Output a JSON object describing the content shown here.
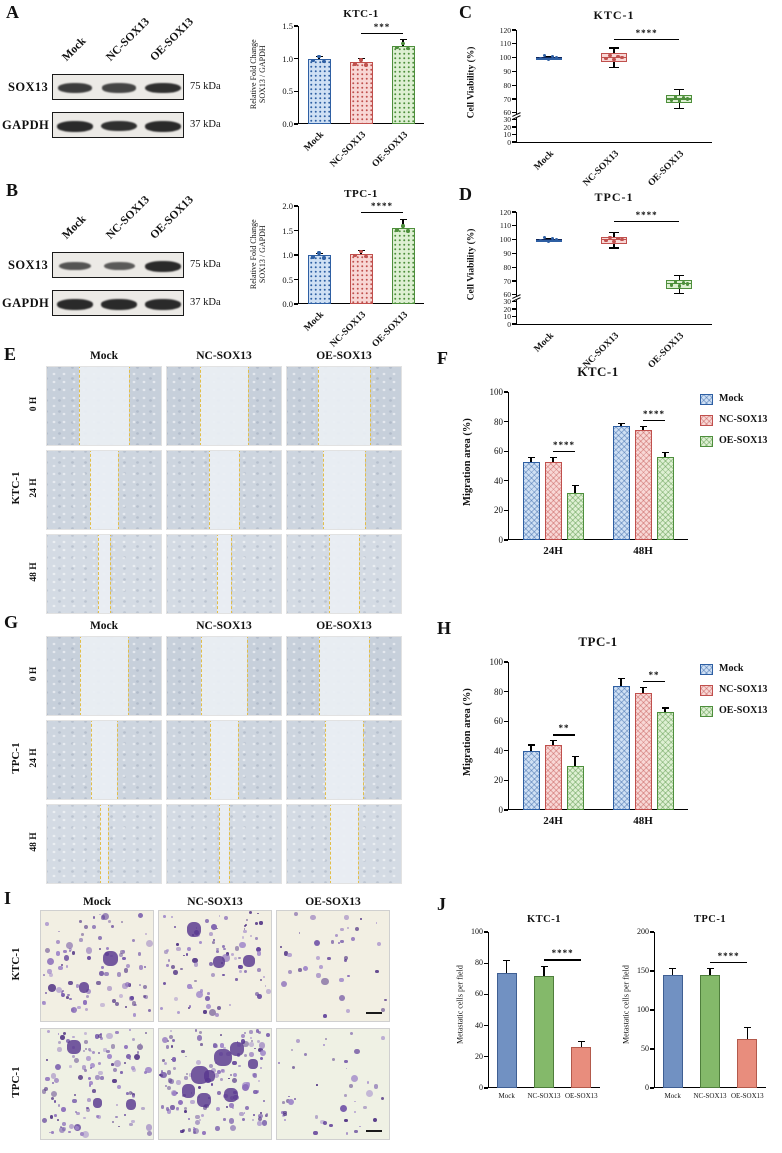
{
  "panel_labels": {
    "a": "A",
    "b": "B",
    "c": "C",
    "d": "D",
    "e": "E",
    "f": "F",
    "g": "G",
    "h": "H",
    "i": "I",
    "j": "J"
  },
  "colors": {
    "series_fill": [
      "#cfe0f4",
      "#f8d7d5",
      "#def0d3"
    ],
    "series_line": [
      "#2e5fa3",
      "#c0504d",
      "#4e8f3c"
    ],
    "j_fill": [
      "#7191c2",
      "#84b96a",
      "#e88d7d"
    ],
    "j_line": [
      "#3f5f93",
      "#4f7e3c",
      "#b35a4c"
    ],
    "dash_line": "#e2be49",
    "stain": "#5f3f99"
  },
  "western": {
    "a": {
      "lanes": [
        "Mock",
        "NC-SOX13",
        "OE-SOX13"
      ],
      "rows": [
        {
          "protein": "SOX13",
          "weight": "75 kDa",
          "intensity": [
            0.8,
            0.72,
            0.95
          ]
        },
        {
          "protein": "GAPDH",
          "weight": "37 kDa",
          "intensity": [
            1,
            0.95,
            1
          ]
        }
      ]
    },
    "b": {
      "lanes": [
        "Mock",
        "NC-SOX13",
        "OE-SOX13"
      ],
      "rows": [
        {
          "protein": "SOX13",
          "weight": "75 kDa",
          "intensity": [
            0.55,
            0.5,
            1
          ]
        },
        {
          "protein": "GAPDH",
          "weight": "37 kDa",
          "intensity": [
            1,
            1,
            1
          ]
        }
      ]
    }
  },
  "chart_data": [
    {
      "id": "A",
      "type": "bar",
      "title": "KTC-1",
      "ylabel": "Relative Fold Change\nSOX13 / GAPDH",
      "categories": [
        "Mock",
        "NC-SOX13",
        "OE-SOX13"
      ],
      "values": [
        1.0,
        0.95,
        1.2
      ],
      "errors": [
        0.03,
        0.06,
        0.09
      ],
      "ylim": [
        0,
        1.5
      ],
      "yticks": [
        "0.0",
        "0.5",
        "1.0",
        "1.5"
      ],
      "significance": {
        "label": "***",
        "from": 1,
        "to": 2
      }
    },
    {
      "id": "B",
      "type": "bar",
      "title": "TPC-1",
      "ylabel": "Relative Fold Change\nSOX13 / GAPDH",
      "categories": [
        "Mock",
        "NC-SOX13",
        "OE-SOX13"
      ],
      "values": [
        1.0,
        1.03,
        1.55
      ],
      "errors": [
        0.03,
        0.07,
        0.18
      ],
      "ylim": [
        0,
        2
      ],
      "yticks": [
        "0.0",
        "0.5",
        "1.0",
        "1.5",
        "2.0"
      ],
      "significance": {
        "label": "****",
        "from": 1,
        "to": 2
      }
    },
    {
      "id": "C",
      "type": "box",
      "title": "KTC-1",
      "ylabel": "Cell Viability (%)",
      "categories": [
        "Mock",
        "NC-SOX13",
        "OE-SOX13"
      ],
      "boxes": [
        {
          "low": 99,
          "q1": 99.6,
          "median": 100,
          "q3": 100.4,
          "high": 101,
          "solid": true
        },
        {
          "low": 93,
          "q1": 97,
          "median": 100,
          "q3": 103,
          "high": 107
        },
        {
          "low": 63,
          "q1": 67,
          "median": 70,
          "q3": 73,
          "high": 77
        }
      ],
      "axis_break": {
        "lower": [
          0,
          30
        ],
        "upper": [
          60,
          120
        ]
      },
      "yticks": [
        [
          0,
          "0"
        ],
        [
          10,
          "10"
        ],
        [
          20,
          "20"
        ],
        [
          30,
          "30"
        ],
        [
          60,
          "60"
        ],
        [
          70,
          "70"
        ],
        [
          80,
          "80"
        ],
        [
          90,
          "90"
        ],
        [
          100,
          "100"
        ],
        [
          110,
          "110"
        ],
        [
          120,
          "120"
        ]
      ],
      "significance": {
        "label": "****",
        "from": 1,
        "to": 2
      }
    },
    {
      "id": "D",
      "type": "box",
      "title": "TPC-1",
      "ylabel": "Cell Viability (%)",
      "categories": [
        "Mock",
        "NC-SOX13",
        "OE-SOX13"
      ],
      "boxes": [
        {
          "low": 99,
          "q1": 99.6,
          "median": 100,
          "q3": 100.4,
          "high": 101,
          "solid": true
        },
        {
          "low": 94,
          "q1": 97,
          "median": 100,
          "q3": 102,
          "high": 105
        },
        {
          "low": 61,
          "q1": 64,
          "median": 68,
          "q3": 71,
          "high": 74
        }
      ],
      "axis_break": {
        "lower": [
          0,
          30
        ],
        "upper": [
          60,
          120
        ]
      },
      "yticks": [
        [
          0,
          "0"
        ],
        [
          10,
          "10"
        ],
        [
          20,
          "20"
        ],
        [
          30,
          "30"
        ],
        [
          60,
          "60"
        ],
        [
          70,
          "70"
        ],
        [
          80,
          "80"
        ],
        [
          90,
          "90"
        ],
        [
          100,
          "100"
        ],
        [
          110,
          "110"
        ],
        [
          120,
          "120"
        ]
      ],
      "significance": {
        "label": "****",
        "from": 1,
        "to": 2
      }
    },
    {
      "id": "F",
      "type": "grouped-bar",
      "title": "KTC-1",
      "ylabel": "Migration area (%)",
      "groups": [
        "24H",
        "48H"
      ],
      "series": [
        {
          "name": "Mock",
          "values": [
            53,
            77
          ],
          "errors": [
            3,
            2
          ]
        },
        {
          "name": "NC-SOX13",
          "values": [
            53,
            74
          ],
          "errors": [
            3,
            3
          ]
        },
        {
          "name": "OE-SOX13",
          "values": [
            32,
            56
          ],
          "errors": [
            5,
            3
          ]
        }
      ],
      "ylim": [
        0,
        100
      ],
      "yticks": [
        "0",
        "20",
        "40",
        "60",
        "80",
        "100"
      ],
      "legend": [
        "Mock",
        "NC-SOX13",
        "OE-SOX13"
      ],
      "significance": [
        {
          "label": "****",
          "from": 1,
          "to": 2
        },
        {
          "label": "****",
          "from": 1,
          "to": 2
        }
      ]
    },
    {
      "id": "H",
      "type": "grouped-bar",
      "title": "TPC-1",
      "ylabel": "Migration area (%)",
      "groups": [
        "24H",
        "48H"
      ],
      "series": [
        {
          "name": "Mock",
          "values": [
            40,
            84
          ],
          "errors": [
            4,
            5
          ]
        },
        {
          "name": "NC-SOX13",
          "values": [
            44,
            79
          ],
          "errors": [
            3,
            4
          ]
        },
        {
          "name": "OE-SOX13",
          "values": [
            30,
            66
          ],
          "errors": [
            6,
            3
          ]
        }
      ],
      "ylim": [
        0,
        100
      ],
      "yticks": [
        "0",
        "20",
        "40",
        "60",
        "80",
        "100"
      ],
      "legend": [
        "Mock",
        "NC-SOX13",
        "OE-SOX13"
      ],
      "significance": [
        {
          "label": "**",
          "from": 1,
          "to": 2
        },
        {
          "label": "**",
          "from": 1,
          "to": 2
        }
      ]
    },
    {
      "id": "J1",
      "type": "bar",
      "title": "KTC-1",
      "ylabel": "Metastatic cells per field",
      "categories": [
        "Mock",
        "NC-SOX13",
        "OE-SOX13"
      ],
      "values": [
        74,
        72,
        26
      ],
      "errors": [
        8,
        6,
        4
      ],
      "ylim": [
        0,
        100
      ],
      "yticks": [
        "0",
        "20",
        "40",
        "60",
        "80",
        "100"
      ],
      "significance": {
        "label": "****",
        "from": 1,
        "to": 2
      }
    },
    {
      "id": "J2",
      "type": "bar",
      "title": "TPC-1",
      "ylabel": "Metastatic cells per field",
      "categories": [
        "Mock",
        "NC-SOX13",
        "OE-SOX13"
      ],
      "values": [
        145,
        145,
        63
      ],
      "errors": [
        8,
        8,
        15
      ],
      "ylim": [
        0,
        200
      ],
      "yticks": [
        "0",
        "50",
        "100",
        "150",
        "200"
      ],
      "significance": {
        "label": "****",
        "from": 1,
        "to": 2
      }
    }
  ],
  "wound": {
    "e": {
      "cell_line": "KTC-1",
      "columns": [
        "Mock",
        "NC-SOX13",
        "OE-SOX13"
      ],
      "rows": [
        "0 H",
        "24 H",
        "48 H"
      ],
      "gap_pct": [
        [
          44,
          42,
          45
        ],
        [
          24,
          26,
          36
        ],
        [
          11,
          13,
          27
        ]
      ]
    },
    "g": {
      "cell_line": "TPC-1",
      "columns": [
        "Mock",
        "NC-SOX13",
        "OE-SOX13"
      ],
      "rows": [
        "0 H",
        "24 H",
        "48 H"
      ],
      "gap_pct": [
        [
          42,
          40,
          44
        ],
        [
          22,
          24,
          33
        ],
        [
          7,
          9,
          25
        ]
      ]
    }
  },
  "transwell": {
    "columns": [
      "Mock",
      "NC-SOX13",
      "OE-SOX13"
    ],
    "rows": [
      "KTC-1",
      "TPC-1"
    ],
    "density": [
      [
        95,
        90,
        38
      ],
      [
        120,
        150,
        45
      ]
    ],
    "clusters": [
      [
        2,
        3,
        0
      ],
      [
        3,
        8,
        0
      ]
    ]
  }
}
